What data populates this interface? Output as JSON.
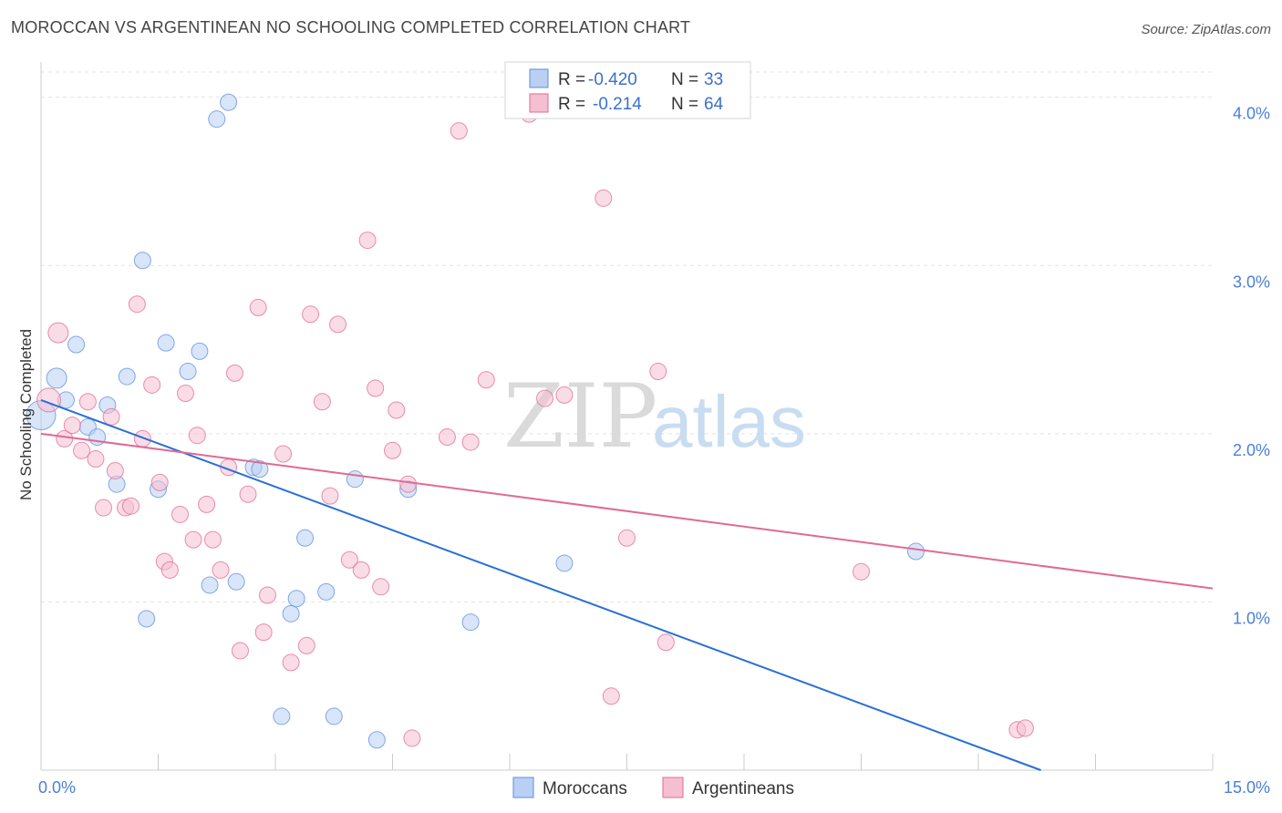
{
  "title": "MOROCCAN VS ARGENTINEAN NO SCHOOLING COMPLETED CORRELATION CHART",
  "source": "Source: ZipAtlas.com",
  "watermark": {
    "zip": "ZIP",
    "atlas": "atlas"
  },
  "chart_data": {
    "type": "scatter",
    "ylabel": "No Schooling Completed",
    "xlim": [
      0,
      15
    ],
    "ylim": [
      0,
      4.15
    ],
    "y_ticks": [
      {
        "v": 1,
        "label": "1.0%"
      },
      {
        "v": 2,
        "label": "2.0%"
      },
      {
        "v": 3,
        "label": "3.0%"
      },
      {
        "v": 4,
        "label": "4.0%"
      }
    ],
    "x_tick_labels": [
      {
        "v": 0,
        "label": "0.0%"
      },
      {
        "v": 15,
        "label": "15.0%"
      }
    ],
    "x_minor_ticks": [
      1.5,
      3.0,
      4.5,
      6.0,
      7.5,
      9.0,
      10.5,
      12.0,
      13.5,
      15.0
    ],
    "grid": true,
    "legend_position": "top-center",
    "series": [
      {
        "name": "Moroccans",
        "color": "#5b8ee0",
        "fill": "#b9d0f2",
        "R": "-0.420",
        "N": "33",
        "trend": [
          [
            0,
            2.2
          ],
          [
            12.8,
            0
          ]
        ],
        "points": [
          [
            0.0,
            2.11,
            16
          ],
          [
            0.2,
            2.33,
            11
          ],
          [
            0.32,
            2.2,
            9
          ],
          [
            0.45,
            2.53,
            9
          ],
          [
            0.6,
            2.04,
            9
          ],
          [
            0.72,
            1.98,
            9
          ],
          [
            0.85,
            2.17,
            9
          ],
          [
            0.97,
            1.7,
            9
          ],
          [
            1.1,
            2.34,
            9
          ],
          [
            1.3,
            3.03,
            9
          ],
          [
            1.35,
            0.9,
            9
          ],
          [
            1.5,
            1.67,
            9
          ],
          [
            1.6,
            2.54,
            9
          ],
          [
            1.88,
            2.37,
            9
          ],
          [
            2.03,
            2.49,
            9
          ],
          [
            2.16,
            1.1,
            9
          ],
          [
            2.25,
            3.87,
            9
          ],
          [
            2.4,
            3.97,
            9
          ],
          [
            2.5,
            1.12,
            9
          ],
          [
            2.72,
            1.8,
            9
          ],
          [
            2.8,
            1.79,
            9
          ],
          [
            3.08,
            0.32,
            9
          ],
          [
            3.2,
            0.93,
            9
          ],
          [
            3.27,
            1.02,
            9
          ],
          [
            3.38,
            1.38,
            9
          ],
          [
            3.65,
            1.06,
            9
          ],
          [
            3.75,
            0.32,
            9
          ],
          [
            4.02,
            1.73,
            9
          ],
          [
            4.3,
            0.18,
            9
          ],
          [
            4.7,
            1.67,
            9
          ],
          [
            5.5,
            0.88,
            9
          ],
          [
            6.7,
            1.23,
            9
          ],
          [
            11.2,
            1.3,
            9
          ]
        ]
      },
      {
        "name": "Argentineans",
        "color": "#e06a94",
        "fill": "#f5bfd1",
        "R": "-0.214",
        "N": "64",
        "trend": [
          [
            0,
            2.0
          ],
          [
            15,
            1.08
          ]
        ],
        "points": [
          [
            0.1,
            2.2,
            13
          ],
          [
            0.22,
            2.6,
            11
          ],
          [
            0.3,
            1.97,
            9
          ],
          [
            0.4,
            2.05,
            9
          ],
          [
            0.52,
            1.9,
            9
          ],
          [
            0.6,
            2.19,
            9
          ],
          [
            0.7,
            1.85,
            9
          ],
          [
            0.8,
            1.56,
            9
          ],
          [
            0.9,
            2.1,
            9
          ],
          [
            0.95,
            1.78,
            9
          ],
          [
            1.08,
            1.56,
            9
          ],
          [
            1.15,
            1.57,
            9
          ],
          [
            1.23,
            2.77,
            9
          ],
          [
            1.3,
            1.97,
            9
          ],
          [
            1.42,
            2.29,
            9
          ],
          [
            1.52,
            1.71,
            9
          ],
          [
            1.58,
            1.24,
            9
          ],
          [
            1.65,
            1.19,
            9
          ],
          [
            1.78,
            1.52,
            9
          ],
          [
            1.85,
            2.24,
            9
          ],
          [
            1.95,
            1.37,
            9
          ],
          [
            2.0,
            1.99,
            9
          ],
          [
            2.12,
            1.58,
            9
          ],
          [
            2.2,
            1.37,
            9
          ],
          [
            2.3,
            1.19,
            9
          ],
          [
            2.4,
            1.8,
            9
          ],
          [
            2.48,
            2.36,
            9
          ],
          [
            2.55,
            0.71,
            9
          ],
          [
            2.65,
            1.64,
            9
          ],
          [
            2.78,
            2.75,
            9
          ],
          [
            2.85,
            0.82,
            9
          ],
          [
            2.9,
            1.04,
            9
          ],
          [
            3.1,
            1.88,
            9
          ],
          [
            3.2,
            0.64,
            9
          ],
          [
            3.4,
            0.74,
            9
          ],
          [
            3.45,
            2.71,
            9
          ],
          [
            3.6,
            2.19,
            9
          ],
          [
            3.7,
            1.63,
            9
          ],
          [
            3.8,
            2.65,
            9
          ],
          [
            3.95,
            1.25,
            9
          ],
          [
            4.1,
            1.19,
            9
          ],
          [
            4.18,
            3.15,
            9
          ],
          [
            4.28,
            2.27,
            9
          ],
          [
            4.35,
            1.09,
            9
          ],
          [
            4.5,
            1.9,
            9
          ],
          [
            4.55,
            2.14,
            9
          ],
          [
            4.7,
            1.7,
            9
          ],
          [
            4.75,
            0.19,
            9
          ],
          [
            5.2,
            1.98,
            9
          ],
          [
            5.35,
            3.8,
            9
          ],
          [
            5.5,
            1.95,
            9
          ],
          [
            5.7,
            2.32,
            9
          ],
          [
            6.25,
            3.9,
            9
          ],
          [
            6.45,
            2.21,
            9
          ],
          [
            6.7,
            2.23,
            9
          ],
          [
            7.2,
            3.4,
            9
          ],
          [
            7.3,
            0.44,
            9
          ],
          [
            7.5,
            1.38,
            9
          ],
          [
            7.9,
            2.37,
            9
          ],
          [
            8.0,
            0.76,
            9
          ],
          [
            10.5,
            1.18,
            9
          ],
          [
            12.5,
            0.24,
            9
          ],
          [
            12.6,
            0.25,
            9
          ],
          [
            6.15,
            2.37,
            0
          ]
        ]
      }
    ]
  }
}
